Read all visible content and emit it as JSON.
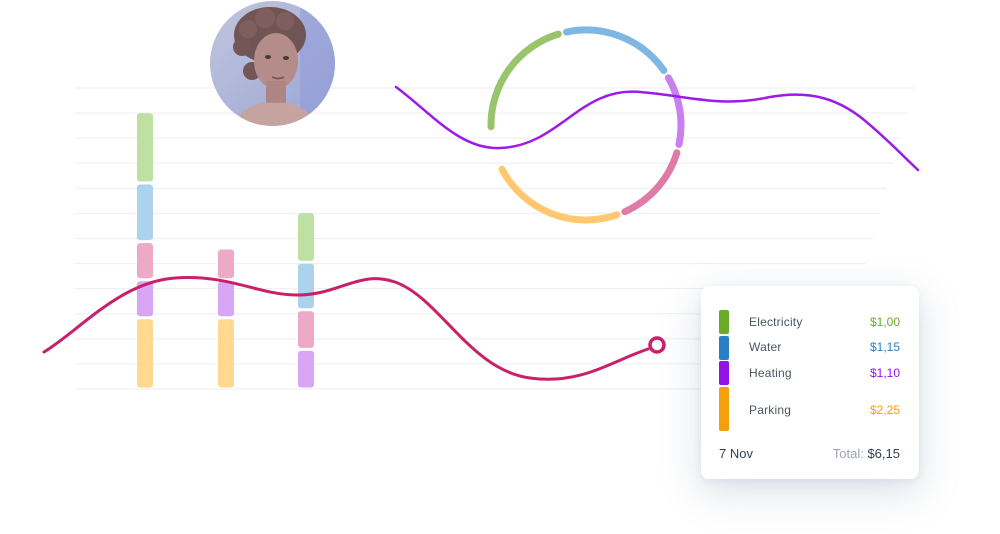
{
  "chart_data": {
    "type": "bar",
    "stacked": true,
    "categories": [
      "",
      "",
      ""
    ],
    "series": [
      {
        "key": "parking",
        "color": "#ffd98e",
        "values": [
          2.25,
          2.25,
          0
        ]
      },
      {
        "key": "heating",
        "color": "#d8a6f5",
        "values": [
          1.2,
          1.2,
          1.25
        ]
      },
      {
        "key": "electricity_pink",
        "color": "#eda9c5",
        "values": [
          1.2,
          1.0,
          1.25
        ]
      },
      {
        "key": "water",
        "color": "#acd2ee",
        "values": [
          1.85,
          0,
          1.5
        ]
      },
      {
        "key": "electricity",
        "color": "#bfe0a3",
        "values": [
          2.25,
          0,
          1.6
        ]
      }
    ],
    "ylim": [
      0,
      9.5
    ],
    "grid": true,
    "decorations": {
      "line_series_color": "#c9206a",
      "wave_color": "#9b1be8",
      "ring_segments": [
        {
          "color": "#98c46c",
          "sweep": 0.22
        },
        {
          "color": "#7fb6e2",
          "sweep": 0.2
        },
        {
          "color": "#c880f0",
          "sweep": 0.13
        },
        {
          "color": "#e07aa6",
          "sweep": 0.15
        },
        {
          "color": "#ffc870",
          "sweep": 0.24
        }
      ]
    }
  },
  "legend": {
    "items": [
      {
        "label": "Electricity",
        "value": "$1,00",
        "swatch": "#6aab2a",
        "value_color": "#6aab2a"
      },
      {
        "label": "Water",
        "value": "$1,15",
        "swatch": "#2a7fc4",
        "value_color": "#2a7fc4"
      },
      {
        "label": "Heating",
        "value": "$1,10",
        "swatch": "#9213e6",
        "value_color": "#9213e6"
      },
      {
        "label": "Parking",
        "value": "$2,25",
        "swatch": "#f59f0b",
        "value_color": "#f59f0b"
      }
    ],
    "date": "7 Nov",
    "total_label": "Total:",
    "total_value": "$6,15"
  },
  "avatar": {
    "icon": "person-photo"
  }
}
